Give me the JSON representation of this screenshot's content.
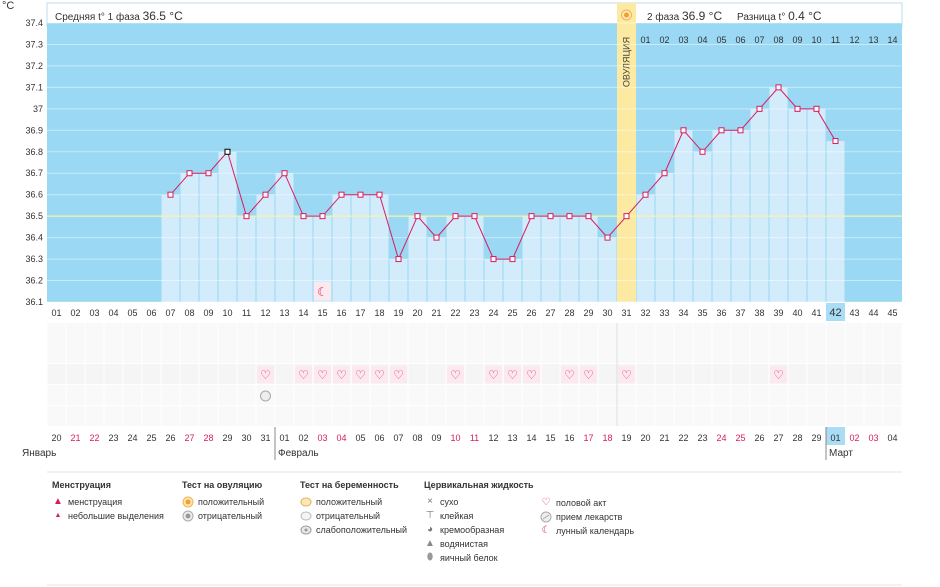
{
  "header": {
    "temp_unit": "°C",
    "phase1_label": "Средняя t° 1 фаза",
    "phase1_value": "36.5 °C",
    "phase2_label": "2 фаза",
    "phase2_value": "36.9 °C",
    "diff_label": "Разница t°",
    "diff_value": "0.4 °C",
    "ovulation_label": "ОВУЛЯЦИЯ"
  },
  "chart_data": {
    "type": "bar",
    "title": "",
    "ylabel": "°C",
    "ylim": [
      36.1,
      37.4
    ],
    "yticks": [
      "36.1",
      "36.2",
      "36.3",
      "36.4",
      "36.5",
      "36.6",
      "36.7",
      "36.8",
      "36.9",
      "37",
      "37.1",
      "37.2",
      "37.3",
      "37.4"
    ],
    "coverline": 36.5,
    "cycle_days": [
      "01",
      "02",
      "03",
      "04",
      "05",
      "06",
      "07",
      "08",
      "09",
      "10",
      "11",
      "12",
      "13",
      "14",
      "15",
      "16",
      "17",
      "18",
      "19",
      "20",
      "21",
      "22",
      "23",
      "24",
      "25",
      "26",
      "27",
      "28",
      "29",
      "30",
      "31",
      "32",
      "33",
      "34",
      "35",
      "36",
      "37",
      "38",
      "39",
      "40",
      "41",
      "42",
      "43",
      "44",
      "45"
    ],
    "temperatures": [
      null,
      null,
      null,
      null,
      null,
      null,
      36.6,
      36.7,
      36.7,
      36.8,
      36.5,
      36.6,
      36.7,
      36.5,
      36.5,
      36.6,
      36.6,
      36.6,
      36.3,
      36.5,
      36.4,
      36.5,
      36.5,
      36.3,
      36.3,
      36.5,
      36.5,
      36.5,
      36.5,
      36.4,
      36.5,
      36.6,
      36.7,
      36.9,
      36.8,
      36.9,
      36.9,
      37.0,
      37.1,
      37.0,
      37.0,
      36.85,
      null,
      null,
      null
    ],
    "ovulation_day": 31,
    "current_day": 42,
    "phase2_day_labels": [
      "01",
      "02",
      "03",
      "04",
      "05",
      "06",
      "07",
      "08",
      "09",
      "10",
      "11",
      "12",
      "13",
      "14"
    ],
    "dates": [
      "20",
      "21",
      "22",
      "23",
      "24",
      "25",
      "26",
      "27",
      "28",
      "29",
      "30",
      "31",
      "01",
      "02",
      "03",
      "04",
      "05",
      "06",
      "07",
      "08",
      "09",
      "10",
      "11",
      "12",
      "13",
      "14",
      "15",
      "16",
      "17",
      "18",
      "19",
      "20",
      "21",
      "22",
      "23",
      "24",
      "25",
      "26",
      "27",
      "28",
      "29",
      "01",
      "02",
      "03",
      "04"
    ],
    "weekend_days": [
      2,
      3,
      8,
      9,
      15,
      16,
      22,
      23,
      29,
      30,
      36,
      37,
      43,
      44
    ],
    "months": [
      "Январь",
      "Февраль",
      "Март"
    ],
    "intercourse_days": [
      12,
      14,
      15,
      16,
      17,
      18,
      19,
      22,
      24,
      25,
      26,
      28,
      29,
      31,
      39
    ],
    "medicine_days": [
      12
    ],
    "moon_days": [
      15
    ]
  },
  "colors": {
    "sky": "#9ad8f4",
    "bar": "#d3ecfb",
    "ovulation": "#fdeaa2",
    "line": "#d81b60",
    "weekend": "#d81b60",
    "highlight": "#a9dcf5"
  },
  "legend": {
    "menstruation": {
      "title": "Менструация",
      "items": [
        "менструация",
        "небольшие выделения"
      ]
    },
    "ovulation_test": {
      "title": "Тест на овуляцию",
      "items": [
        "положительный",
        "отрицательный"
      ]
    },
    "pregnancy_test": {
      "title": "Тест на беременность",
      "items": [
        "положительный",
        "отрицательный",
        "слабоположительный"
      ]
    },
    "cervical_fluid": {
      "title": "Цервикальная жидкость",
      "items": [
        "сухо",
        "клейкая",
        "кремообразная",
        "водянистая",
        "яичный белок"
      ]
    },
    "other": {
      "items": [
        "половой акт",
        "прием лекарств",
        "лунный календарь"
      ]
    }
  }
}
